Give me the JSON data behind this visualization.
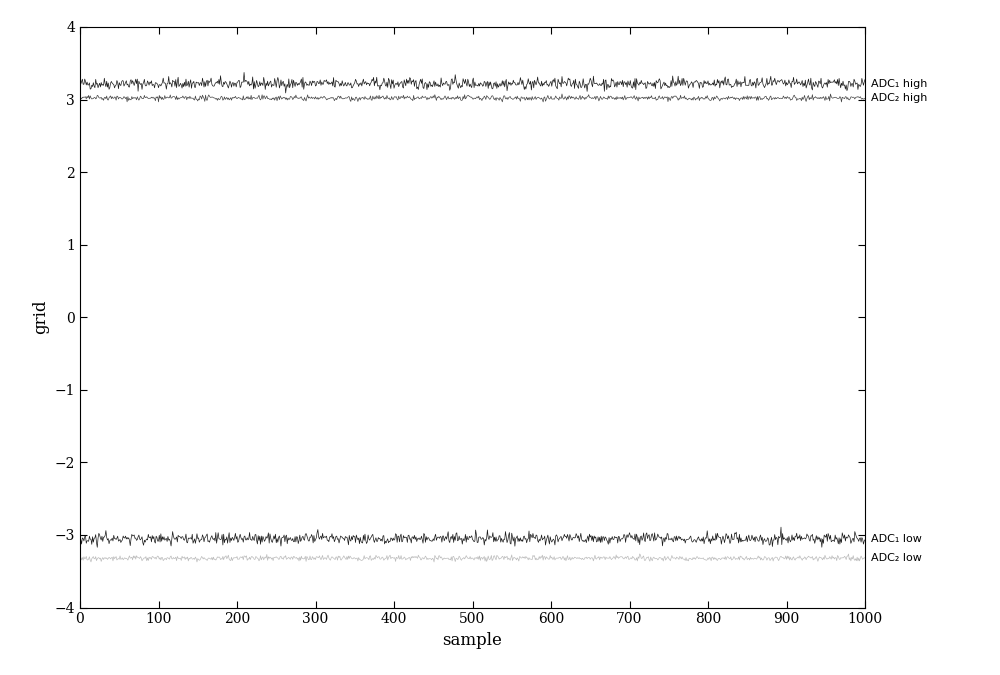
{
  "n_samples": 1001,
  "adc1_high_mean": 3.22,
  "adc2_high_mean": 3.02,
  "adc1_low_mean": -3.05,
  "adc2_low_mean": -3.32,
  "adc1_high_noise": 0.04,
  "adc2_high_noise": 0.018,
  "adc1_low_noise": 0.04,
  "adc2_low_noise": 0.018,
  "adc1_color": "#1a1a1a",
  "adc2_high_color": "#444444",
  "adc2_low_color": "#bbbbbb",
  "xlabel": "sample",
  "ylabel": "grid",
  "xlim": [
    0,
    1000
  ],
  "ylim": [
    -4,
    4
  ],
  "yticks": [
    -4,
    -3,
    -2,
    -1,
    0,
    1,
    2,
    3,
    4
  ],
  "xticks": [
    0,
    100,
    200,
    300,
    400,
    500,
    600,
    700,
    800,
    900,
    1000
  ],
  "label_adc1_high": "ADC₁ high",
  "label_adc2_high": "ADC₂ high",
  "label_adc1_low": "ADC₁ low",
  "label_adc2_low": "ADC₂ low",
  "linewidth": 0.5,
  "seed": 42,
  "figwidth": 10.0,
  "figheight": 6.75,
  "dpi": 100
}
